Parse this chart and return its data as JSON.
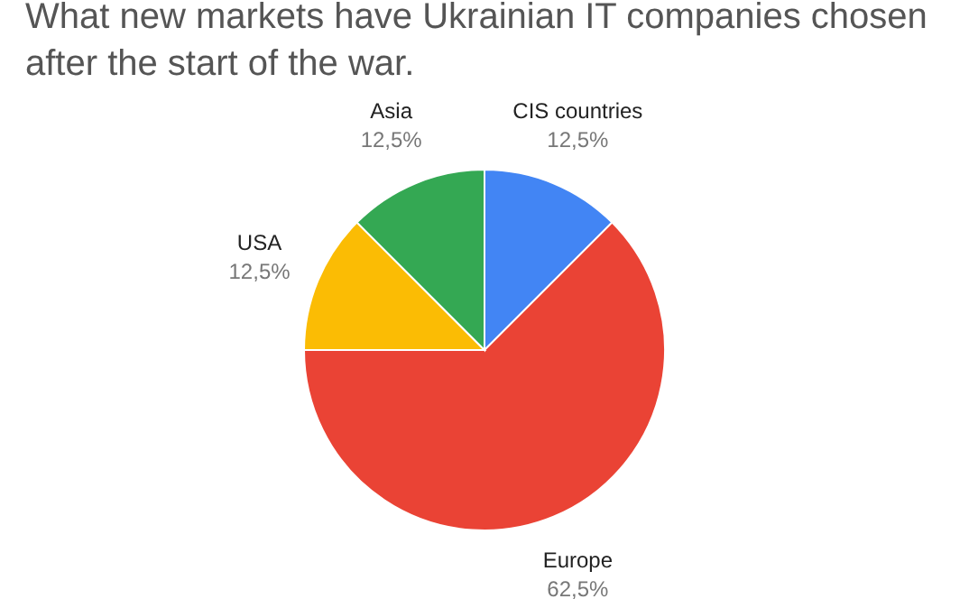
{
  "chart_data": {
    "type": "pie",
    "title": "What new markets have Ukrainian IT companies chosen after the start of the war.",
    "categories": [
      "CIS countries",
      "Europe",
      "USA",
      "Asia"
    ],
    "values": [
      12.5,
      62.5,
      12.5,
      12.5
    ],
    "colors": [
      "#4285f4",
      "#ea4335",
      "#fbbc04",
      "#34a853"
    ],
    "value_labels": [
      "12,5%",
      "62,5%",
      "12,5%",
      "12,5%"
    ]
  }
}
